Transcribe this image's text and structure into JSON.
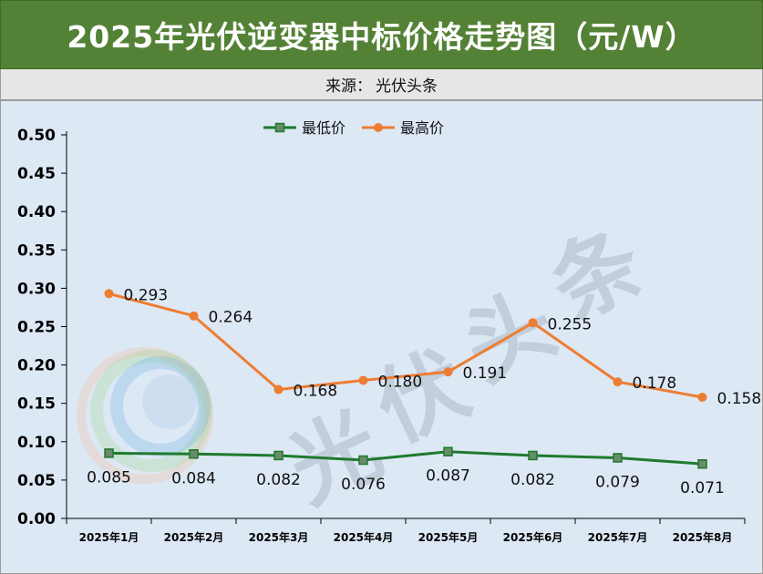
{
  "header": {
    "title": "2025年光伏逆变器中标价格走势图（元/W）",
    "source_label": "来源：",
    "source_value": "光伏头条"
  },
  "watermark": "光伏头条",
  "colors": {
    "title_bg": "#538135",
    "plot_bg": "#dde8f5",
    "series_low": "#1e7a2e",
    "series_low_marker": "#6b8a6b",
    "series_high": "#ed7d31"
  },
  "chart_data": {
    "type": "line",
    "title": "2025年光伏逆变器中标价格走势图（元/W）",
    "categories": [
      "2025年1月",
      "2025年2月",
      "2025年3月",
      "2025年4月",
      "2025年5月",
      "2025年6月",
      "2025年7月",
      "2025年8月"
    ],
    "series": [
      {
        "name": "最低价",
        "color": "#1e7a2e",
        "marker": "square",
        "values": [
          0.085,
          0.084,
          0.082,
          0.076,
          0.087,
          0.082,
          0.079,
          0.071
        ]
      },
      {
        "name": "最高价",
        "color": "#ed7d31",
        "marker": "circle",
        "values": [
          0.293,
          0.264,
          0.168,
          0.18,
          0.191,
          0.255,
          0.178,
          0.158
        ]
      }
    ],
    "ylim": [
      0,
      0.5
    ],
    "yticks": [
      "0.00",
      "0.05",
      "0.10",
      "0.15",
      "0.20",
      "0.25",
      "0.30",
      "0.35",
      "0.40",
      "0.45",
      "0.50"
    ],
    "xlabel": "",
    "ylabel": "",
    "legend": "top-center",
    "grid": false
  }
}
